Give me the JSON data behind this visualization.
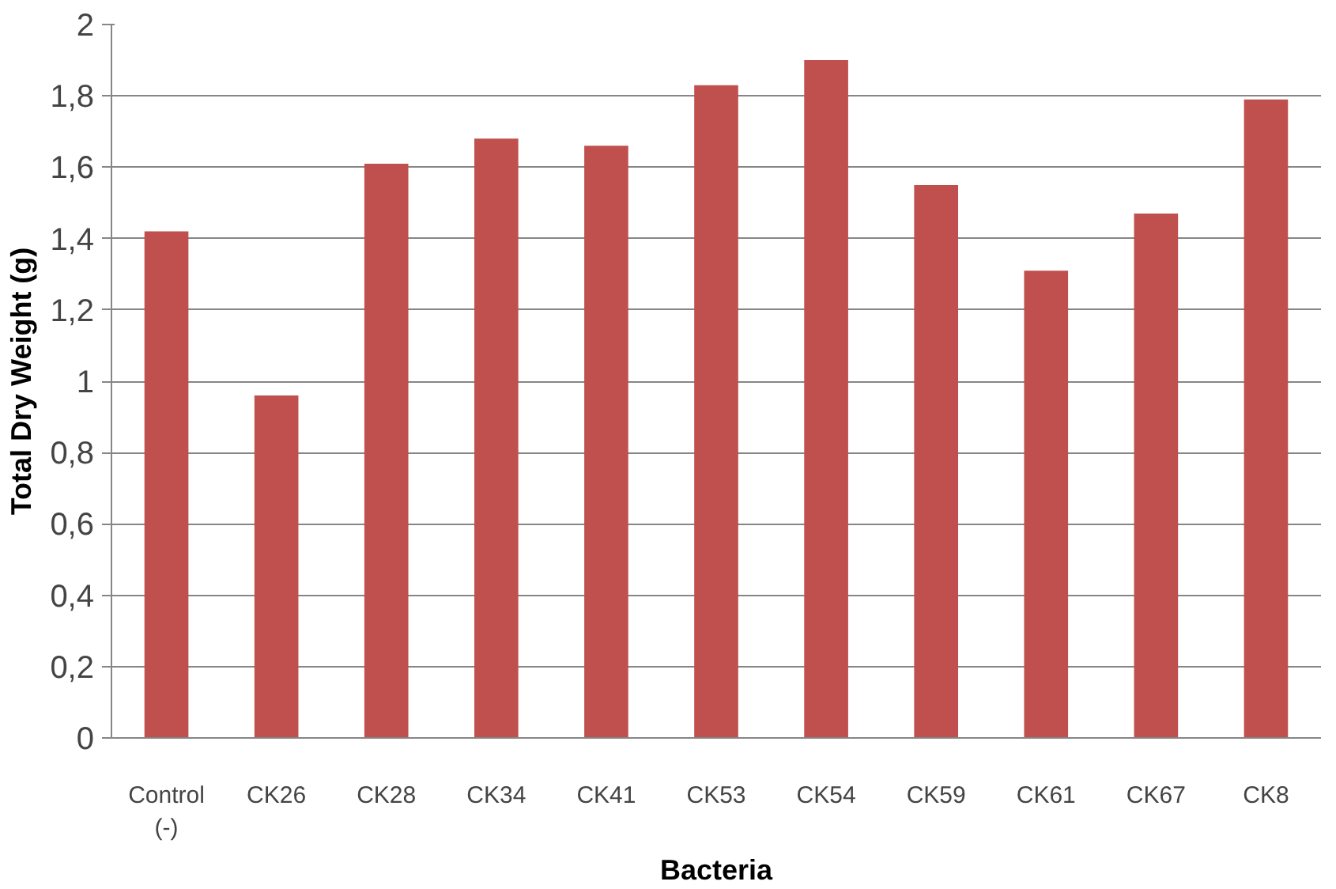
{
  "chart_data": {
    "type": "bar",
    "xlabel": "Bacteria",
    "ylabel": "Total Dry Weight (g)",
    "categories": [
      "Control (-)",
      "CK26",
      "CK28",
      "CK34",
      "CK41",
      "CK53",
      "CK54",
      "CK59",
      "CK61",
      "CK67",
      "CK8"
    ],
    "values": [
      1.42,
      0.96,
      1.61,
      1.68,
      1.66,
      1.83,
      1.9,
      1.55,
      1.31,
      1.47,
      1.79
    ],
    "color": "#c0504d",
    "ylim": [
      0,
      2
    ],
    "yticks": [
      0,
      {
        "value": 0.2,
        "label": "0,2"
      },
      {
        "value": 0.4,
        "label": "0,4"
      },
      {
        "value": 0.6,
        "label": "0,6"
      },
      {
        "value": 0.8,
        "label": "0,8"
      },
      1,
      {
        "value": 1.2,
        "label": "1,2"
      },
      {
        "value": 1.4,
        "label": "1,4"
      },
      {
        "value": 1.6,
        "label": "1,6"
      },
      {
        "value": 1.8,
        "label": "1,8"
      },
      2
    ],
    "grid": "y"
  }
}
